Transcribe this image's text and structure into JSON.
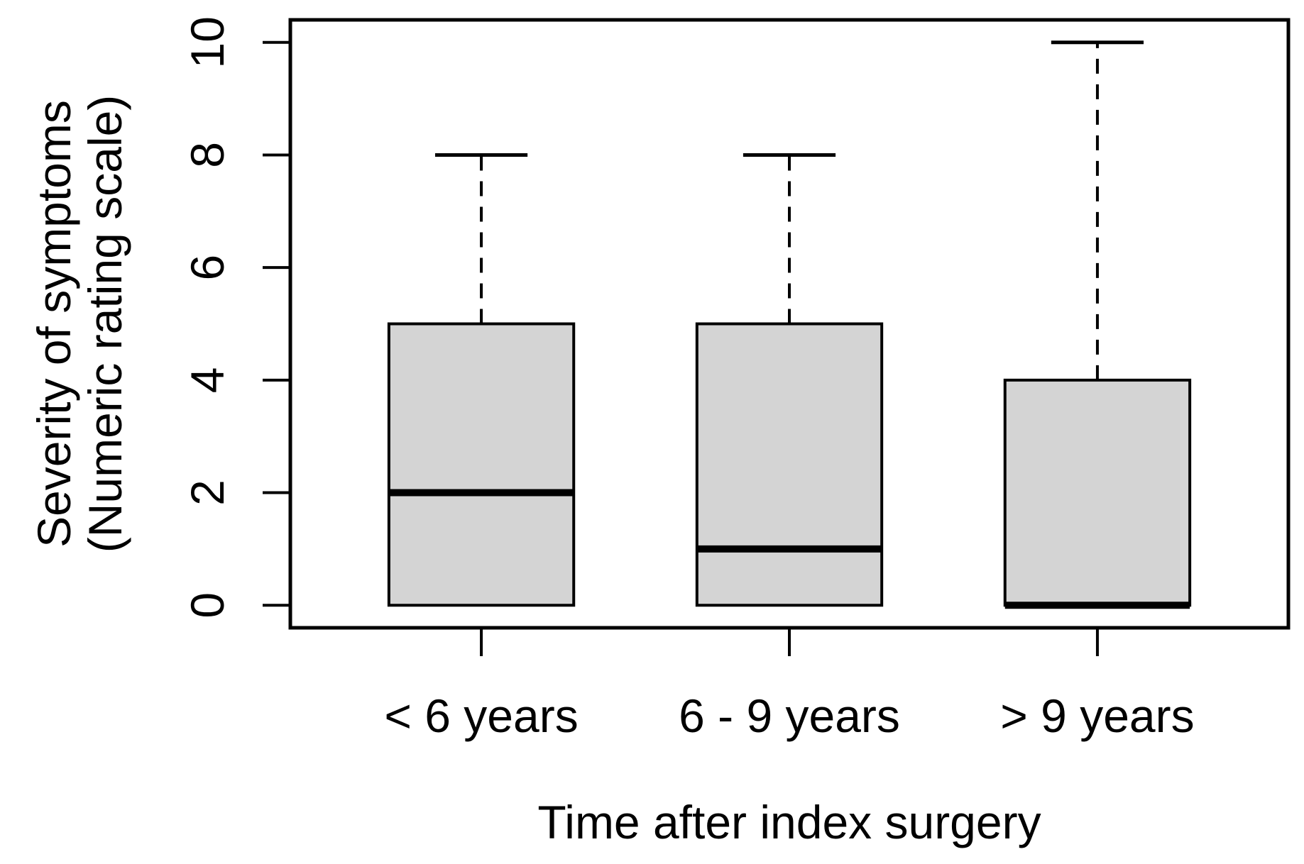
{
  "figure": {
    "background": "#ffffff"
  },
  "chart_data": {
    "type": "box",
    "title": "",
    "xlabel": "Time after index surgery",
    "ylabel_lines": [
      "Severity of symptoms",
      "(Numeric rating scale)"
    ],
    "categories": [
      "< 6 years",
      "6 - 9 years",
      "> 9 years"
    ],
    "ylim": [
      0,
      10
    ],
    "yticks": [
      "0",
      "2",
      "4",
      "6",
      "8",
      "10"
    ],
    "grid": false,
    "legend": null,
    "orientation": "vertical",
    "whisker_linestyle": "dashed",
    "boxes": [
      {
        "category": "< 6 years",
        "whisker_low": 0,
        "q1": 0,
        "median": 2,
        "q3": 5,
        "whisker_high": 8
      },
      {
        "category": "6 - 9 years",
        "whisker_low": 0,
        "q1": 0,
        "median": 1,
        "q3": 5,
        "whisker_high": 8
      },
      {
        "category": "> 9 years",
        "whisker_low": 0,
        "q1": 0,
        "median": 0,
        "q3": 4,
        "whisker_high": 10
      }
    ],
    "colors": {
      "box_fill": "#d4d4d4",
      "line": "#000000",
      "text": "#000000",
      "background": "#ffffff"
    }
  }
}
